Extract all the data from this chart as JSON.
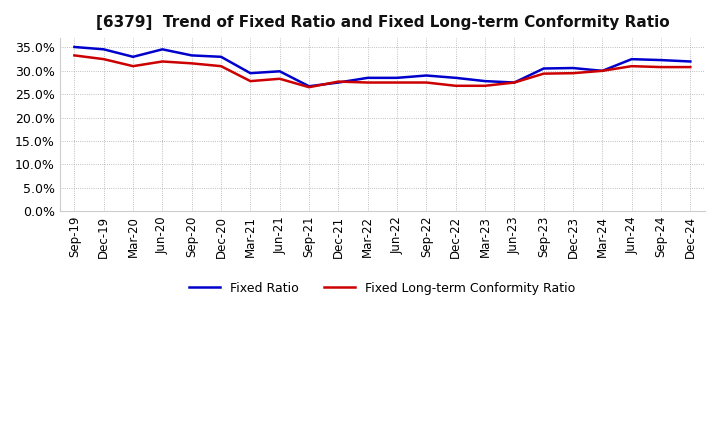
{
  "title": "[6379]  Trend of Fixed Ratio and Fixed Long-term Conformity Ratio",
  "x_labels": [
    "Sep-19",
    "Dec-19",
    "Mar-20",
    "Jun-20",
    "Sep-20",
    "Dec-20",
    "Mar-21",
    "Jun-21",
    "Sep-21",
    "Dec-21",
    "Mar-22",
    "Jun-22",
    "Sep-22",
    "Dec-22",
    "Mar-23",
    "Jun-23",
    "Sep-23",
    "Dec-23",
    "Mar-24",
    "Jun-24",
    "Sep-24",
    "Dec-24"
  ],
  "fixed_ratio": [
    0.351,
    0.346,
    0.33,
    0.346,
    0.333,
    0.33,
    0.295,
    0.299,
    0.267,
    0.275,
    0.285,
    0.285,
    0.29,
    0.285,
    0.278,
    0.275,
    0.305,
    0.306,
    0.3,
    0.325,
    0.323,
    0.32
  ],
  "fixed_lt_ratio": [
    0.333,
    0.325,
    0.31,
    0.32,
    0.316,
    0.31,
    0.278,
    0.283,
    0.265,
    0.277,
    0.275,
    0.275,
    0.275,
    0.268,
    0.268,
    0.275,
    0.294,
    0.295,
    0.3,
    0.31,
    0.308,
    0.308
  ],
  "fixed_ratio_color": "#0000cc",
  "fixed_lt_ratio_color": "#cc0000",
  "background_color": "#ffffff",
  "plot_bg_color": "#ffffff",
  "grid_color": "#aaaaaa",
  "ylim": [
    0.0,
    0.37
  ],
  "yticks": [
    0.0,
    0.05,
    0.1,
    0.15,
    0.2,
    0.25,
    0.3,
    0.35
  ],
  "legend_fixed": "Fixed Ratio",
  "legend_lt": "Fixed Long-term Conformity Ratio",
  "line_width": 1.8,
  "title_fontsize": 11,
  "tick_fontsize": 8.5,
  "ytick_fontsize": 9
}
